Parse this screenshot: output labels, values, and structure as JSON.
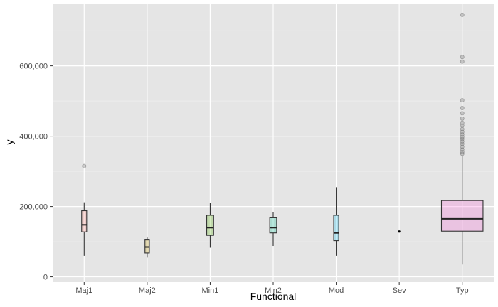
{
  "chart_data": {
    "type": "boxplot",
    "xlabel": "Functional",
    "ylabel": "y",
    "ylim": [
      -15000,
      775000
    ],
    "y_ticks": [
      0,
      200000,
      400000,
      600000
    ],
    "y_tick_labels": [
      "0",
      "200,000",
      "400,000",
      "600,000"
    ],
    "grid": true,
    "categories": [
      "Maj1",
      "Maj2",
      "Min1",
      "Min2",
      "Mod",
      "Sev",
      "Typ"
    ],
    "boxes": [
      {
        "category": "Maj1",
        "min": 60000,
        "q1": 128000,
        "median": 148000,
        "q3": 188000,
        "max": 212000,
        "outliers": [
          315000
        ],
        "fill": "#f8766d",
        "width": 0.08
      },
      {
        "category": "Maj2",
        "min": 55000,
        "q1": 68000,
        "median": 85000,
        "q3": 105000,
        "max": 112000,
        "outliers": [],
        "fill": "#c49a00",
        "width": 0.07
      },
      {
        "category": "Min1",
        "min": 83000,
        "q1": 118000,
        "median": 140000,
        "q3": 175000,
        "max": 210000,
        "outliers": [],
        "fill": "#53b400",
        "width": 0.11
      },
      {
        "category": "Min2",
        "min": 88000,
        "q1": 125000,
        "median": 140000,
        "q3": 168000,
        "max": 183000,
        "outliers": [],
        "fill": "#00c094",
        "width": 0.11
      },
      {
        "category": "Mod",
        "min": 60000,
        "q1": 103000,
        "median": 125000,
        "q3": 175000,
        "max": 255000,
        "outliers": [],
        "fill": "#00b6eb",
        "width": 0.08
      },
      {
        "category": "Sev",
        "min": 129000,
        "q1": 129000,
        "median": 129000,
        "q3": 129000,
        "max": 129000,
        "outliers": [],
        "fill": "#a58aff",
        "width": 0.02
      },
      {
        "category": "Typ",
        "min": 35000,
        "q1": 130000,
        "median": 165000,
        "q3": 217000,
        "max": 345000,
        "outliers": [
          350000,
          355000,
          362000,
          370000,
          378000,
          385000,
          392000,
          398000,
          405000,
          412000,
          420000,
          430000,
          438000,
          450000,
          465000,
          480000,
          502000,
          612000,
          625000,
          745000
        ],
        "fill": "#fb61d7",
        "width": 0.66
      }
    ]
  }
}
